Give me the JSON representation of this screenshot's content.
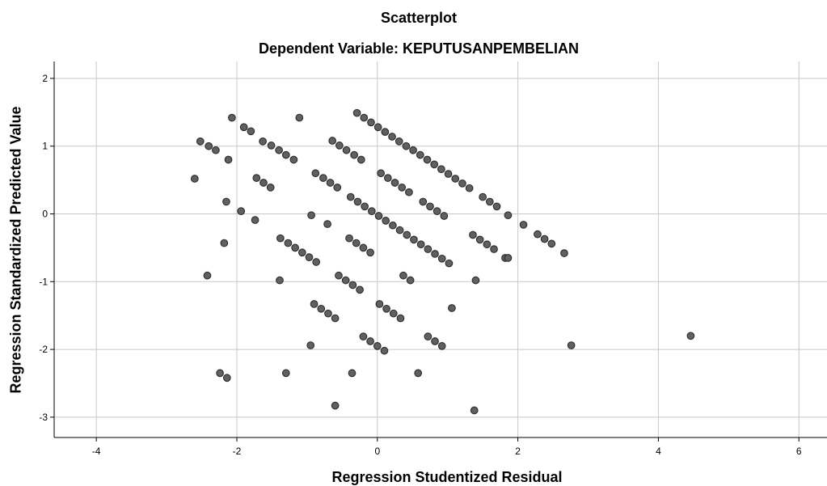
{
  "chart_data": {
    "type": "scatter",
    "title": "Scatterplot",
    "subtitle": "Dependent Variable: KEPUTUSANPEMBELIAN",
    "xlabel": "Regression Studentized Residual",
    "ylabel": "Regression Standardized Predicted Value",
    "xlim": [
      -4.6,
      6.4
    ],
    "ylim": [
      -3.3,
      2.25
    ],
    "xticks": [
      -4,
      -2,
      0,
      2,
      4,
      6
    ],
    "yticks": [
      -3,
      -2,
      -1,
      0,
      1,
      2
    ],
    "grid": true,
    "colors": {
      "point_fill": "#606060",
      "point_stroke": "#2a2a2a",
      "grid": "#c8c8c8",
      "axis": "#000000"
    },
    "points": [
      [
        -2.6,
        0.52
      ],
      [
        -2.52,
        1.07
      ],
      [
        -2.4,
        1.0
      ],
      [
        -2.3,
        0.94
      ],
      [
        -2.12,
        0.8
      ],
      [
        -2.07,
        1.42
      ],
      [
        -1.9,
        1.28
      ],
      [
        -1.8,
        1.22
      ],
      [
        -1.72,
        0.53
      ],
      [
        -1.62,
        0.46
      ],
      [
        -1.52,
        0.39
      ],
      [
        -1.63,
        1.07
      ],
      [
        -1.51,
        1.01
      ],
      [
        -1.4,
        0.94
      ],
      [
        -1.3,
        0.87
      ],
      [
        -1.19,
        0.8
      ],
      [
        -1.11,
        1.42
      ],
      [
        -2.15,
        0.18
      ],
      [
        -1.94,
        0.04
      ],
      [
        -1.74,
        -0.09
      ],
      [
        -2.18,
        -0.43
      ],
      [
        -2.42,
        -0.91
      ],
      [
        -1.39,
        -0.98
      ],
      [
        -1.38,
        -0.36
      ],
      [
        -1.27,
        -0.43
      ],
      [
        -1.17,
        -0.5
      ],
      [
        -1.07,
        -0.57
      ],
      [
        -0.97,
        -0.64
      ],
      [
        -0.87,
        -0.71
      ],
      [
        -0.94,
        -0.02
      ],
      [
        -0.71,
        -0.15
      ],
      [
        -0.88,
        0.6
      ],
      [
        -0.77,
        0.53
      ],
      [
        -0.67,
        0.46
      ],
      [
        -0.57,
        0.39
      ],
      [
        -0.64,
        1.08
      ],
      [
        -0.54,
        1.01
      ],
      [
        -0.44,
        0.94
      ],
      [
        -0.33,
        0.87
      ],
      [
        -0.23,
        0.8
      ],
      [
        -0.29,
        1.49
      ],
      [
        -0.19,
        1.42
      ],
      [
        -0.09,
        1.35
      ],
      [
        0.01,
        1.28
      ],
      [
        0.11,
        1.21
      ],
      [
        0.21,
        1.14
      ],
      [
        0.31,
        1.07
      ],
      [
        0.41,
        1.0
      ],
      [
        0.51,
        0.94
      ],
      [
        0.61,
        0.87
      ],
      [
        0.71,
        0.8
      ],
      [
        0.81,
        0.73
      ],
      [
        0.91,
        0.66
      ],
      [
        1.01,
        0.59
      ],
      [
        1.11,
        0.52
      ],
      [
        1.21,
        0.45
      ],
      [
        1.31,
        0.38
      ],
      [
        -0.38,
        0.25
      ],
      [
        -0.28,
        0.18
      ],
      [
        -0.18,
        0.11
      ],
      [
        -0.08,
        0.04
      ],
      [
        0.02,
        -0.03
      ],
      [
        0.12,
        -0.1
      ],
      [
        0.22,
        -0.17
      ],
      [
        0.32,
        -0.24
      ],
      [
        0.42,
        -0.31
      ],
      [
        0.52,
        -0.38
      ],
      [
        0.62,
        -0.45
      ],
      [
        0.72,
        -0.52
      ],
      [
        0.82,
        -0.59
      ],
      [
        0.92,
        -0.66
      ],
      [
        1.02,
        -0.73
      ],
      [
        0.05,
        0.6
      ],
      [
        0.15,
        0.53
      ],
      [
        0.25,
        0.46
      ],
      [
        0.35,
        0.39
      ],
      [
        0.45,
        0.32
      ],
      [
        0.65,
        0.18
      ],
      [
        0.75,
        0.11
      ],
      [
        0.85,
        0.04
      ],
      [
        0.95,
        -0.03
      ],
      [
        -0.4,
        -0.36
      ],
      [
        -0.3,
        -0.43
      ],
      [
        -0.2,
        -0.5
      ],
      [
        -0.1,
        -0.57
      ],
      [
        -0.55,
        -0.91
      ],
      [
        -0.45,
        -0.98
      ],
      [
        -0.35,
        -1.05
      ],
      [
        -0.25,
        -1.12
      ],
      [
        0.37,
        -0.91
      ],
      [
        0.47,
        -0.98
      ],
      [
        -0.9,
        -1.33
      ],
      [
        -0.8,
        -1.4
      ],
      [
        -0.7,
        -1.47
      ],
      [
        -0.6,
        -1.54
      ],
      [
        0.03,
        -1.33
      ],
      [
        0.13,
        -1.4
      ],
      [
        0.23,
        -1.47
      ],
      [
        0.33,
        -1.54
      ],
      [
        -0.95,
        -1.94
      ],
      [
        -0.2,
        -1.81
      ],
      [
        -0.1,
        -1.88
      ],
      [
        0.0,
        -1.95
      ],
      [
        0.1,
        -2.02
      ],
      [
        0.72,
        -1.81
      ],
      [
        0.82,
        -1.88
      ],
      [
        0.92,
        -1.95
      ],
      [
        1.06,
        -1.39
      ],
      [
        1.4,
        -0.98
      ],
      [
        1.36,
        -0.31
      ],
      [
        1.46,
        -0.38
      ],
      [
        1.56,
        -0.45
      ],
      [
        1.66,
        -0.52
      ],
      [
        1.82,
        -0.65
      ],
      [
        1.86,
        -0.65
      ],
      [
        1.5,
        0.25
      ],
      [
        1.6,
        0.18
      ],
      [
        1.7,
        0.11
      ],
      [
        1.86,
        -0.02
      ],
      [
        2.08,
        -0.16
      ],
      [
        2.28,
        -0.3
      ],
      [
        2.38,
        -0.37
      ],
      [
        2.48,
        -0.44
      ],
      [
        2.66,
        -0.58
      ],
      [
        -2.24,
        -2.35
      ],
      [
        -2.14,
        -2.42
      ],
      [
        -1.3,
        -2.35
      ],
      [
        -0.36,
        -2.35
      ],
      [
        0.58,
        -2.35
      ],
      [
        -0.6,
        -2.83
      ],
      [
        1.38,
        -2.9
      ],
      [
        2.76,
        -1.94
      ],
      [
        4.46,
        -1.8
      ]
    ]
  }
}
